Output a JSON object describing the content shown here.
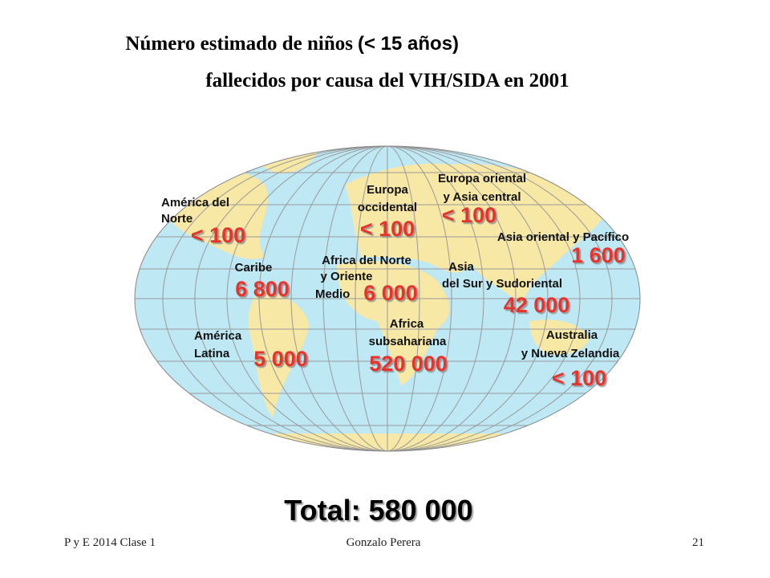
{
  "header": {
    "title_line1": "Número estimado de niños",
    "title_line1_paren": "(< 15 años)",
    "title_line2": "fallecidos por causa del VIH/SIDA en 2001"
  },
  "regions": [
    {
      "name_lines": [
        "América del",
        "Norte"
      ],
      "value": "< 100"
    },
    {
      "name_lines": [
        "Caribe"
      ],
      "value": "6 800"
    },
    {
      "name_lines": [
        "América",
        "Latina"
      ],
      "value": "5 000"
    },
    {
      "name_lines": [
        "Europa",
        "occidental"
      ],
      "value": "< 100"
    },
    {
      "name_lines": [
        "Europa oriental",
        "y Asia central"
      ],
      "value": "< 100"
    },
    {
      "name_lines": [
        "Asia oriental y Pacífico"
      ],
      "value": "1 600"
    },
    {
      "name_lines": [
        "Africa del Norte",
        "y Oriente",
        "Medio"
      ],
      "value": "6 000"
    },
    {
      "name_lines": [
        "Asia",
        "del Sur y Sudoriental"
      ],
      "value": "42 000"
    },
    {
      "name_lines": [
        "Africa",
        "subsahariana"
      ],
      "value": "520 000"
    },
    {
      "name_lines": [
        "Australia",
        "y Nueva Zelandia"
      ],
      "value": "< 100"
    }
  ],
  "total": "Total: 580 000",
  "footer": {
    "left": "P y E 2014 Clase 1",
    "center": "Gonzalo Perera",
    "right": "21"
  }
}
